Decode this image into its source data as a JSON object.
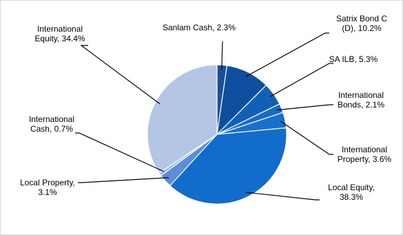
{
  "chart_data": {
    "type": "pie",
    "slices": [
      {
        "label": "Sanlam Cash",
        "value": 2.3,
        "color": "#1f4e99",
        "lines": [
          "Sanlam Cash, 2.3%"
        ]
      },
      {
        "label": "Satrix Bond C (D)",
        "value": 10.2,
        "color": "#0d4f9e",
        "lines": [
          "Satrix Bond C",
          "(D), 10.2%"
        ]
      },
      {
        "label": "SA ILB",
        "value": 5.3,
        "color": "#1260b5",
        "lines": [
          "SA ILB, 5.3%"
        ]
      },
      {
        "label": "International Bonds",
        "value": 2.1,
        "color": "#1a6ac4",
        "lines": [
          "International",
          "Bonds, 2.1%"
        ]
      },
      {
        "label": "International Property",
        "value": 3.6,
        "color": "#1a6fce",
        "lines": [
          "International",
          "Property, 3.6%"
        ]
      },
      {
        "label": "Local Equity",
        "value": 38.3,
        "color": "#126ccb",
        "lines": [
          "Local Equity,",
          "38.3%"
        ]
      },
      {
        "label": "Local Property",
        "value": 3.1,
        "color": "#5b8ed6",
        "lines": [
          "Local Property,",
          "3.1%"
        ]
      },
      {
        "label": "International Cash",
        "value": 0.7,
        "color": "#9ab4e0",
        "lines": [
          "International",
          "Cash, 0.7%"
        ]
      },
      {
        "label": "International Equity",
        "value": 34.4,
        "color": "#b3c6e6",
        "lines": [
          "International",
          "Equity, 34.4%"
        ]
      }
    ]
  }
}
